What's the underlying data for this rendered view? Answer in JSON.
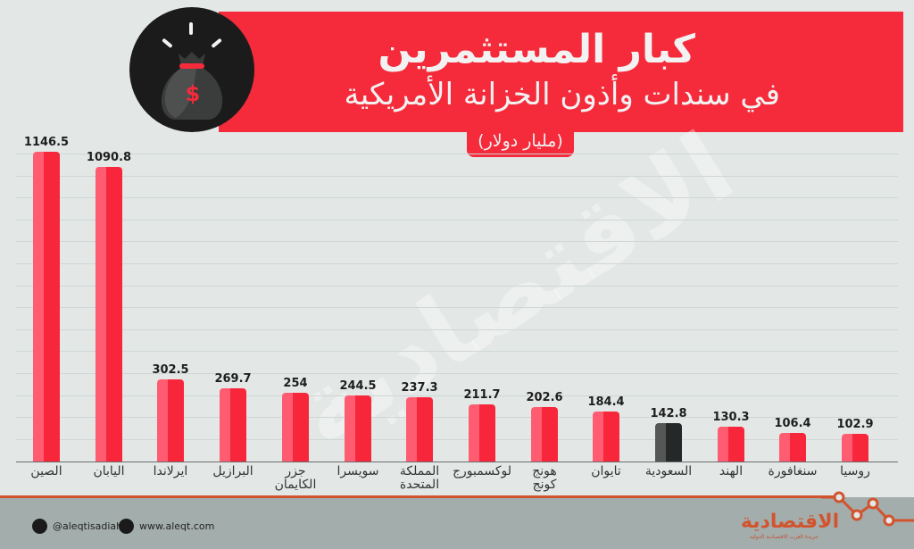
{
  "header": {
    "title": "كبار المستثمرين",
    "subtitle": "في سندات وأذون الخزانة الأمريكية",
    "unit": "(مليار دولار)",
    "icon": "money-bag-icon"
  },
  "watermark": "الاقتصادية",
  "chart_data": {
    "type": "bar",
    "title": "كبار المستثمرين في سندات وأذون الخزانة الأمريكية",
    "subtitle": "(مليار دولار)",
    "xlabel": "",
    "ylabel": "مليار دولار",
    "categories": [
      "الصين",
      "اليابان",
      "ايرلاندا",
      "البرازيل",
      "جزر الكايمان",
      "سويسرا",
      "المملكة المتحدة",
      "لوكسمبورج",
      "هونج كونج",
      "تايوان",
      "السعودية",
      "الهند",
      "سنغافورة",
      "روسيا"
    ],
    "values": [
      1146.5,
      1090.8,
      302.5,
      269.7,
      254,
      244.5,
      237.3,
      211.7,
      202.6,
      184.4,
      142.8,
      130.3,
      106.4,
      102.9
    ],
    "highlight": {
      "category": "السعودية",
      "color": "#262728"
    },
    "bar_color": "#f7263a",
    "ylim": [
      0,
      1150
    ],
    "grid": true,
    "legend": null
  },
  "bars": [
    {
      "label_lines": [
        "الصين"
      ],
      "value": "1146.5"
    },
    {
      "label_lines": [
        "اليابان"
      ],
      "value": "1090.8"
    },
    {
      "label_lines": [
        "ايرلاندا"
      ],
      "value": "302.5"
    },
    {
      "label_lines": [
        "البرازيل"
      ],
      "value": "269.7"
    },
    {
      "label_lines": [
        "جزر",
        "الكايمان"
      ],
      "value": "254"
    },
    {
      "label_lines": [
        "سويسرا"
      ],
      "value": "244.5"
    },
    {
      "label_lines": [
        "المملكة",
        "المتحدة"
      ],
      "value": "237.3"
    },
    {
      "label_lines": [
        "لوكسمبورج"
      ],
      "value": "211.7"
    },
    {
      "label_lines": [
        "هونج",
        "كونج"
      ],
      "value": "202.6"
    },
    {
      "label_lines": [
        "تايوان"
      ],
      "value": "184.4"
    },
    {
      "label_lines": [
        "السعودية"
      ],
      "value": "142.8"
    },
    {
      "label_lines": [
        "الهند"
      ],
      "value": "130.3"
    },
    {
      "label_lines": [
        "سنغافورة"
      ],
      "value": "106.4"
    },
    {
      "label_lines": [
        "روسيا"
      ],
      "value": "102.9"
    }
  ],
  "footer": {
    "twitter": "@aleqtisadiah",
    "website": "www.aleqt.com",
    "logo": "الاقتصادية",
    "logo_tagline": "جريدة العرب الاقتصادية الدولية"
  }
}
